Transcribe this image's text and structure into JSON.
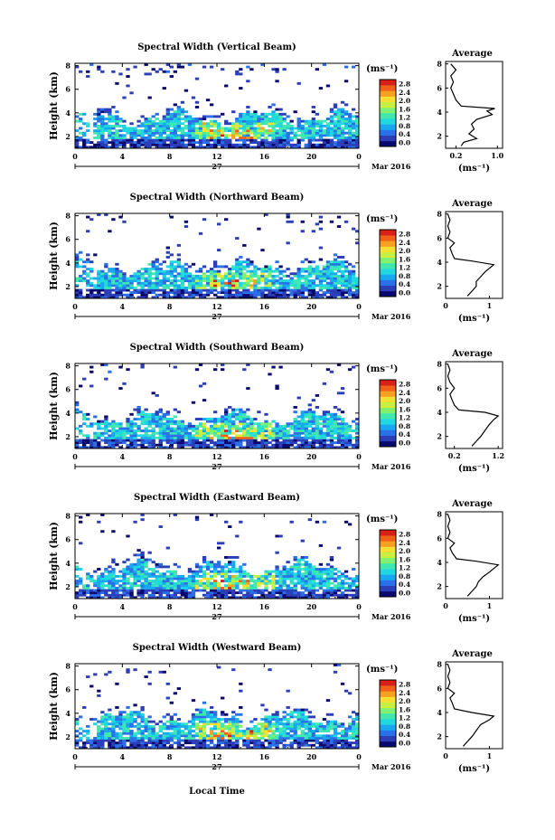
{
  "figure": {
    "local_time_label": "Local Time",
    "date_day": "27",
    "date_month": "Mar 2016",
    "height_label": "Height (km)",
    "unit_label": "(ms⁻¹)",
    "avg_title": "Average",
    "colorbar_ticks": [
      "0.0",
      "0.4",
      "0.8",
      "1.2",
      "1.6",
      "2.0",
      "2.4",
      "2.8"
    ],
    "colormap": [
      "#0a0a6e",
      "#2c3fb8",
      "#2a70e8",
      "#18a8f0",
      "#20d8e0",
      "#40e8b0",
      "#80f070",
      "#c8f040",
      "#f8e030",
      "#f8a020",
      "#f06018",
      "#d82018"
    ]
  },
  "chart_data": [
    {
      "type": "heatmap",
      "title": "Spectral Width (Vertical Beam)",
      "xlabel": "Local Time",
      "ylabel": "Height (km)",
      "xlim": [
        0,
        24
      ],
      "ylim": [
        1,
        8.2
      ],
      "xticks": [
        "0",
        "4",
        "8",
        "12",
        "16",
        "20",
        "0"
      ],
      "yticks": [
        "2",
        "4",
        "6",
        "8"
      ],
      "colorbar": {
        "label": "(ms⁻¹)",
        "range": [
          0,
          2.8
        ]
      },
      "average_profile": {
        "title": "Average",
        "xlabel": "(ms⁻¹)",
        "xlim": [
          0,
          1.1
        ],
        "xticks": [
          "0.2",
          "1.0"
        ],
        "yticks": [
          "2",
          "4",
          "6",
          "8"
        ],
        "points": [
          [
            0.3,
            1.2
          ],
          [
            0.35,
            1.5
          ],
          [
            0.6,
            1.8
          ],
          [
            0.45,
            2.2
          ],
          [
            0.55,
            2.6
          ],
          [
            0.5,
            3.0
          ],
          [
            0.6,
            3.4
          ],
          [
            0.9,
            3.8
          ],
          [
            0.8,
            4.1
          ],
          [
            0.95,
            4.3
          ],
          [
            0.3,
            4.5
          ],
          [
            0.2,
            5.0
          ],
          [
            0.15,
            5.5
          ],
          [
            0.1,
            6.0
          ],
          [
            0.15,
            6.5
          ],
          [
            0.1,
            7.0
          ],
          [
            0.2,
            7.5
          ],
          [
            0.1,
            8.0
          ]
        ]
      }
    },
    {
      "type": "heatmap",
      "title": "Spectral Width (Northward Beam)",
      "xlabel": "Local Time",
      "ylabel": "Height (km)",
      "xlim": [
        0,
        24
      ],
      "ylim": [
        1,
        8.2
      ],
      "xticks": [
        "0",
        "4",
        "8",
        "12",
        "16",
        "20",
        "0"
      ],
      "yticks": [
        "2",
        "4",
        "6",
        "8"
      ],
      "colorbar": {
        "label": "(ms⁻¹)",
        "range": [
          0,
          2.8
        ]
      },
      "average_profile": {
        "title": "Average",
        "xlabel": "(ms⁻¹)",
        "xlim": [
          0,
          1.3
        ],
        "xticks": [
          "0",
          "1"
        ],
        "yticks": [
          "2",
          "4",
          "6",
          "8"
        ],
        "points": [
          [
            0.5,
            1.2
          ],
          [
            0.6,
            1.6
          ],
          [
            0.7,
            2.0
          ],
          [
            0.7,
            2.4
          ],
          [
            0.8,
            2.8
          ],
          [
            0.9,
            3.2
          ],
          [
            1.0,
            3.5
          ],
          [
            1.1,
            3.8
          ],
          [
            0.6,
            4.1
          ],
          [
            0.2,
            4.3
          ],
          [
            0.15,
            4.7
          ],
          [
            0.1,
            5.2
          ],
          [
            0.2,
            5.6
          ],
          [
            0.05,
            6.0
          ],
          [
            0.1,
            6.5
          ],
          [
            0.05,
            7.0
          ],
          [
            0.1,
            7.5
          ],
          [
            0.05,
            8.0
          ]
        ]
      }
    },
    {
      "type": "heatmap",
      "title": "Spectral Width (Southward Beam)",
      "xlabel": "Local Time",
      "ylabel": "Height (km)",
      "xlim": [
        0,
        24
      ],
      "ylim": [
        1,
        8.2
      ],
      "xticks": [
        "0",
        "4",
        "8",
        "12",
        "16",
        "20",
        "0"
      ],
      "yticks": [
        "2",
        "4",
        "6",
        "8"
      ],
      "colorbar": {
        "label": "(ms⁻¹)",
        "range": [
          0,
          2.8
        ]
      },
      "average_profile": {
        "title": "Average",
        "xlabel": "(ms⁻¹)",
        "xlim": [
          0,
          1.3
        ],
        "xticks": [
          "0.2",
          "1.2"
        ],
        "yticks": [
          "2",
          "4",
          "6",
          "8"
        ],
        "points": [
          [
            0.6,
            1.2
          ],
          [
            0.7,
            1.6
          ],
          [
            0.8,
            2.0
          ],
          [
            0.9,
            2.5
          ],
          [
            1.0,
            3.0
          ],
          [
            1.1,
            3.4
          ],
          [
            1.2,
            3.7
          ],
          [
            0.9,
            4.0
          ],
          [
            0.3,
            4.2
          ],
          [
            0.2,
            4.6
          ],
          [
            0.15,
            5.0
          ],
          [
            0.1,
            5.5
          ],
          [
            0.2,
            6.0
          ],
          [
            0.1,
            6.5
          ],
          [
            0.05,
            7.0
          ],
          [
            0.1,
            7.5
          ],
          [
            0.05,
            8.0
          ]
        ]
      }
    },
    {
      "type": "heatmap",
      "title": "Spectral Width (Eastward Beam)",
      "xlabel": "Local Time",
      "ylabel": "Height (km)",
      "xlim": [
        0,
        24
      ],
      "ylim": [
        1,
        8.2
      ],
      "xticks": [
        "0",
        "4",
        "8",
        "12",
        "16",
        "20",
        "0"
      ],
      "yticks": [
        "2",
        "4",
        "6",
        "8"
      ],
      "colorbar": {
        "label": "(ms⁻¹)",
        "range": [
          0,
          2.8
        ]
      },
      "average_profile": {
        "title": "Average",
        "xlabel": "(ms⁻¹)",
        "xlim": [
          0,
          1.3
        ],
        "xticks": [
          "0",
          "1"
        ],
        "yticks": [
          "2",
          "4",
          "6",
          "8"
        ],
        "points": [
          [
            0.5,
            1.2
          ],
          [
            0.6,
            1.6
          ],
          [
            0.7,
            2.0
          ],
          [
            0.75,
            2.4
          ],
          [
            0.85,
            2.8
          ],
          [
            1.0,
            3.2
          ],
          [
            1.1,
            3.5
          ],
          [
            1.2,
            3.8
          ],
          [
            0.7,
            4.1
          ],
          [
            0.25,
            4.3
          ],
          [
            0.15,
            4.8
          ],
          [
            0.1,
            5.2
          ],
          [
            0.2,
            5.6
          ],
          [
            0.05,
            6.0
          ],
          [
            0.1,
            6.5
          ],
          [
            0.05,
            7.0
          ],
          [
            0.1,
            7.5
          ],
          [
            0.05,
            8.0
          ]
        ]
      }
    },
    {
      "type": "heatmap",
      "title": "Spectral Width (Westward Beam)",
      "xlabel": "Local Time",
      "ylabel": "Height (km)",
      "xlim": [
        0,
        24
      ],
      "ylim": [
        1,
        8.2
      ],
      "xticks": [
        "0",
        "4",
        "8",
        "12",
        "16",
        "20",
        "0"
      ],
      "yticks": [
        "2",
        "4",
        "6",
        "8"
      ],
      "colorbar": {
        "label": "(ms⁻¹)",
        "range": [
          0,
          2.8
        ]
      },
      "average_profile": {
        "title": "Average",
        "xlabel": "(ms⁻¹)",
        "xlim": [
          0,
          1.3
        ],
        "xticks": [
          "0",
          "1"
        ],
        "yticks": [
          "2",
          "4",
          "6",
          "8"
        ],
        "points": [
          [
            0.4,
            1.2
          ],
          [
            0.5,
            1.6
          ],
          [
            0.6,
            2.0
          ],
          [
            0.7,
            2.5
          ],
          [
            0.8,
            3.0
          ],
          [
            1.0,
            3.4
          ],
          [
            1.1,
            3.7
          ],
          [
            0.6,
            4.0
          ],
          [
            0.2,
            4.3
          ],
          [
            0.15,
            4.8
          ],
          [
            0.1,
            5.2
          ],
          [
            0.2,
            5.6
          ],
          [
            0.05,
            6.0
          ],
          [
            0.1,
            6.5
          ],
          [
            0.05,
            7.0
          ],
          [
            0.1,
            7.5
          ],
          [
            0.05,
            8.0
          ]
        ]
      }
    }
  ]
}
